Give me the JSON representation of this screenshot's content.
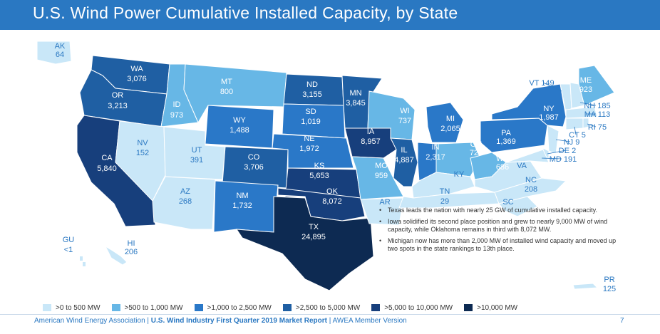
{
  "title": "U.S. Wind Power Cumulative Installed Capacity, by State",
  "colors": {
    "c0": "#c9e7f8",
    "c1": "#67b7e6",
    "c2": "#2a78c8",
    "c3": "#1f5fa3",
    "c4": "#173f7c",
    "c5": "#0d2a52",
    "title_bar": "#2a78c2"
  },
  "states": [
    {
      "code": "AK",
      "value": "64",
      "class": 0
    },
    {
      "code": "WA",
      "value": "3,076",
      "class": 3
    },
    {
      "code": "OR",
      "value": "3,213",
      "class": 3
    },
    {
      "code": "CA",
      "value": "5,840",
      "class": 4
    },
    {
      "code": "ID",
      "value": "973",
      "class": 1
    },
    {
      "code": "NV",
      "value": "152",
      "class": 0
    },
    {
      "code": "MT",
      "value": "800",
      "class": 1
    },
    {
      "code": "WY",
      "value": "1,488",
      "class": 2
    },
    {
      "code": "UT",
      "value": "391",
      "class": 0
    },
    {
      "code": "AZ",
      "value": "268",
      "class": 0
    },
    {
      "code": "CO",
      "value": "3,706",
      "class": 3
    },
    {
      "code": "NM",
      "value": "1,732",
      "class": 2
    },
    {
      "code": "ND",
      "value": "3,155",
      "class": 3
    },
    {
      "code": "SD",
      "value": "1,019",
      "class": 2
    },
    {
      "code": "NE",
      "value": "1,972",
      "class": 2
    },
    {
      "code": "KS",
      "value": "5,653",
      "class": 4
    },
    {
      "code": "OK",
      "value": "8,072",
      "class": 4
    },
    {
      "code": "TX",
      "value": "24,895",
      "class": 5
    },
    {
      "code": "MN",
      "value": "3,845",
      "class": 3
    },
    {
      "code": "IA",
      "value": "8,957",
      "class": 4
    },
    {
      "code": "MO",
      "value": "959",
      "class": 1
    },
    {
      "code": "AR",
      "value": "",
      "class": 0
    },
    {
      "code": "WI",
      "value": "737",
      "class": 1
    },
    {
      "code": "IL",
      "value": "4,887",
      "class": 3
    },
    {
      "code": "MI",
      "value": "2,065",
      "class": 2
    },
    {
      "code": "IN",
      "value": "2,317",
      "class": 2
    },
    {
      "code": "OH",
      "value": "729",
      "class": 1
    },
    {
      "code": "KY",
      "value": "",
      "class": 0
    },
    {
      "code": "TN",
      "value": "29",
      "class": 0
    },
    {
      "code": "WV",
      "value": "686",
      "class": 1
    },
    {
      "code": "VA",
      "value": "",
      "class": 0
    },
    {
      "code": "NC",
      "value": "208",
      "class": 0
    },
    {
      "code": "PA",
      "value": "1,369",
      "class": 2
    },
    {
      "code": "NY",
      "value": "1,987",
      "class": 2
    },
    {
      "code": "VT",
      "value": "149",
      "class": 0
    },
    {
      "code": "ME",
      "value": "923",
      "class": 1
    },
    {
      "code": "NH",
      "value": "185",
      "class": 0
    },
    {
      "code": "MA",
      "value": "113",
      "class": 0
    },
    {
      "code": "RI",
      "value": "75",
      "class": 0
    },
    {
      "code": "CT",
      "value": "5",
      "class": 0
    },
    {
      "code": "NJ",
      "value": "9",
      "class": 0
    },
    {
      "code": "DE",
      "value": "2",
      "class": 0
    },
    {
      "code": "MD",
      "value": "191",
      "class": 0
    },
    {
      "code": "GU",
      "value": "<1",
      "class": 0
    },
    {
      "code": "HI",
      "value": "206",
      "class": 0
    },
    {
      "code": "PR",
      "value": "125",
      "class": 0
    },
    {
      "code": "SC",
      "value": "",
      "class": 0
    }
  ],
  "notes": [
    "Texas leads the nation with nearly 25 GW of cumulative installed capacity.",
    "Iowa solidified its second place position and grew to nearly 9,000 MW of wind capacity, while Oklahoma remains in third with 8,072 MW.",
    "Michigan now has more than 2,000 MW of installed wind capacity and moved up two spots in the state rankings to 13th place."
  ],
  "legend": [
    {
      "label": ">0 to 500 MW",
      "class": 0
    },
    {
      "label": ">500 to 1,000 MW",
      "class": 1
    },
    {
      "label": ">1,000 to 2,500 MW",
      "class": 2
    },
    {
      "label": ">2,500 to 5,000 MW",
      "class": 3
    },
    {
      "label": ">5,000 to 10,000 MW",
      "class": 4
    },
    {
      "label": ">10,000 MW",
      "class": 5
    }
  ],
  "footer": {
    "org": "American Wind Energy Association",
    "report": "U.S. Wind Industry First Quarter 2019 Market Report",
    "version": "AWEA Member Version",
    "sep": "|",
    "page": "7"
  }
}
